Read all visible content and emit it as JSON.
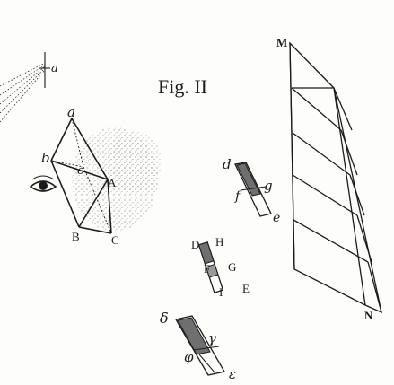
{
  "figure": {
    "caption": "Fig. II",
    "ink_color": "#1b1b1b",
    "paper_color": "#fdfdfb",
    "shade_color": "#6f6f6f"
  },
  "labels": {
    "a_small": "a",
    "prism_a": "a",
    "prism_b": "b",
    "prism_c": "c",
    "prism_A": "A",
    "prism_B": "B",
    "prism_C": "C",
    "small_d": "d",
    "small_f": "f",
    "small_g": "g",
    "small_e": "e",
    "mid_D": "D",
    "mid_H": "H",
    "mid_F": "F",
    "mid_G": "G",
    "mid_I": "I",
    "mid_E": "E",
    "low_delta": "δ",
    "low_gamma": "γ",
    "low_phi": "φ",
    "low_epsilon": "ε",
    "grid_M": "M",
    "grid_N": "N"
  },
  "icons": {
    "eye": "eye-icon"
  }
}
